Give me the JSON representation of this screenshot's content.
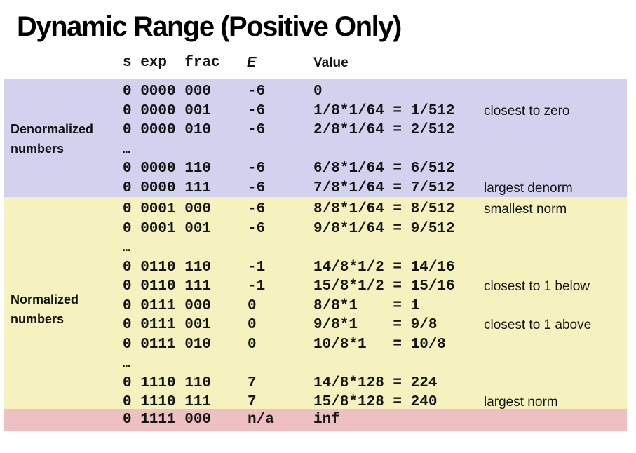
{
  "title": "Dynamic Range (Positive Only)",
  "colors": {
    "denormalized_band": "#d2d2ee",
    "normalized_band": "#f5f2bf",
    "infinity_band": "#eec0c3",
    "text": "#141414"
  },
  "table": {
    "header": {
      "bits": "s exp  frac",
      "exponent": "E",
      "value": "Value"
    },
    "sections": [
      {
        "id": "denormalized",
        "label_lines": [
          "Denormalized",
          "numbers"
        ],
        "color": "#d2d2ee",
        "rows": [
          {
            "bits": "0 0000 000",
            "e": "-6",
            "value": "0",
            "note": ""
          },
          {
            "bits": "0 0000 001",
            "e": "-6",
            "value": "1/8*1/64 = 1/512",
            "note": "closest to zero"
          },
          {
            "bits": "0 0000 010",
            "e": "-6",
            "value": "2/8*1/64 = 2/512",
            "note": ""
          },
          {
            "bits": "…",
            "e": "",
            "value": "",
            "note": ""
          },
          {
            "bits": "0 0000 110",
            "e": "-6",
            "value": "6/8*1/64 = 6/512",
            "note": ""
          },
          {
            "bits": "0 0000 111",
            "e": "-6",
            "value": "7/8*1/64 = 7/512",
            "note": "largest denorm"
          }
        ]
      },
      {
        "id": "normalized",
        "label_lines": [
          "Normalized",
          "numbers"
        ],
        "color": "#f5f2bf",
        "rows": [
          {
            "bits": "0 0001 000",
            "e": "-6",
            "value": "8/8*1/64 = 8/512",
            "note": "smallest norm"
          },
          {
            "bits": "0 0001 001",
            "e": "-6",
            "value": "9/8*1/64 = 9/512",
            "note": ""
          },
          {
            "bits": "…",
            "e": "",
            "value": "",
            "note": ""
          },
          {
            "bits": "0 0110 110",
            "e": "-1",
            "value": "14/8*1/2 = 14/16",
            "note": ""
          },
          {
            "bits": "0 0110 111",
            "e": "-1",
            "value": "15/8*1/2 = 15/16",
            "note": "closest to 1 below"
          },
          {
            "bits": "0 0111 000",
            "e": "0",
            "value": "8/8*1    = 1",
            "note": ""
          },
          {
            "bits": "0 0111 001",
            "e": "0",
            "value": "9/8*1    = 9/8",
            "note": "closest to 1 above"
          },
          {
            "bits": "0 0111 010",
            "e": "0",
            "value": "10/8*1   = 10/8",
            "note": ""
          },
          {
            "bits": "…",
            "e": "",
            "value": "",
            "note": ""
          },
          {
            "bits": "0 1110 110",
            "e": "7",
            "value": "14/8*128 = 224",
            "note": ""
          },
          {
            "bits": "0 1110 111",
            "e": "7",
            "value": "15/8*128 = 240",
            "note": "largest norm"
          }
        ]
      },
      {
        "id": "infinity",
        "label_lines": [],
        "color": "#eec0c3",
        "rows": [
          {
            "bits": "0 1111 000",
            "e": "n/a",
            "value": "inf",
            "note": ""
          }
        ]
      }
    ]
  }
}
